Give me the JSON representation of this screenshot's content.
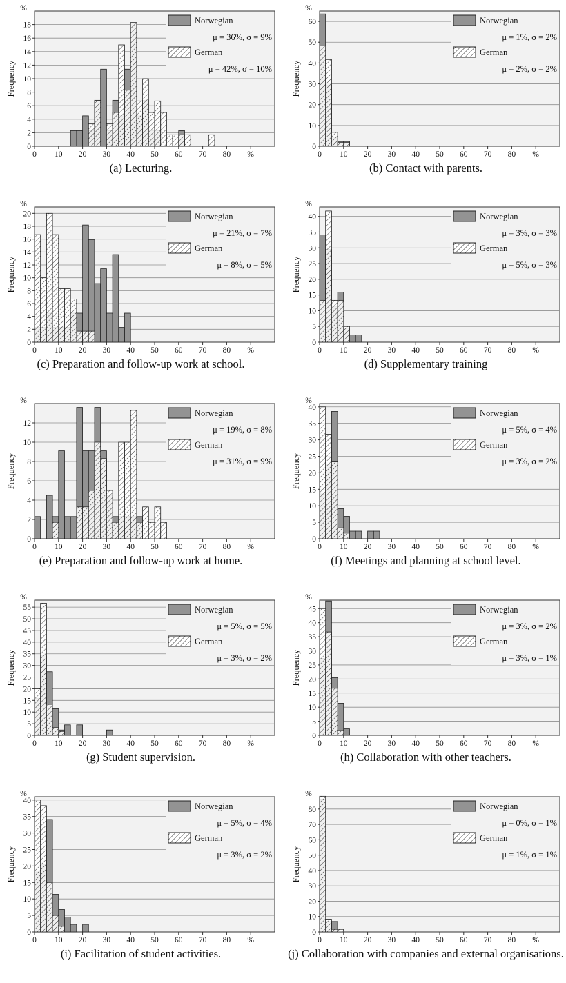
{
  "legend": {
    "series": [
      "Norwegian",
      "German"
    ]
  },
  "colors": {
    "norwegian_fill": "#939393",
    "german_fill": "#ffffff",
    "hatch": "#222222",
    "plot_bg": "#f2f2f2",
    "grid": "#8f8f8f"
  },
  "axis": {
    "ylabel": "Frequency",
    "unit": "%",
    "x_ticks": [
      "0",
      "10",
      "20",
      "30",
      "40",
      "50",
      "60",
      "70",
      "80",
      "%"
    ]
  },
  "chart_data": [
    {
      "type": "bar",
      "caption": "(a) Lecturing.",
      "bin_width": 2.5,
      "xlim": [
        0,
        100
      ],
      "ylim": [
        0,
        20
      ],
      "yticks": [
        0,
        2,
        4,
        6,
        8,
        10,
        12,
        14,
        16,
        18
      ],
      "series": [
        {
          "name": "Norwegian",
          "stats": "μ = 36%, σ = 9%",
          "bins": [
            [
              15,
              2.3
            ],
            [
              17.5,
              2.3
            ],
            [
              20,
              4.5
            ],
            [
              22.5,
              2.3
            ],
            [
              25,
              6.8
            ],
            [
              27.5,
              11.4
            ],
            [
              30,
              2.3
            ],
            [
              32.5,
              6.8
            ],
            [
              35,
              4.5
            ],
            [
              37.5,
              11.4
            ],
            [
              40,
              18.2
            ],
            [
              42.5,
              4.5
            ],
            [
              45,
              6.8
            ],
            [
              47.5,
              2.3
            ],
            [
              50,
              2.3
            ],
            [
              60,
              2.3
            ]
          ]
        },
        {
          "name": "German",
          "stats": "μ = 42%, σ = 10%",
          "bins": [
            [
              22.5,
              3.3
            ],
            [
              25,
              6.7
            ],
            [
              30,
              3.3
            ],
            [
              32.5,
              5
            ],
            [
              35,
              15
            ],
            [
              37.5,
              8.3
            ],
            [
              40,
              18.3
            ],
            [
              42.5,
              6.7
            ],
            [
              45,
              10
            ],
            [
              47.5,
              5
            ],
            [
              50,
              6.7
            ],
            [
              52.5,
              5
            ],
            [
              55,
              1.7
            ],
            [
              57.5,
              1.7
            ],
            [
              60,
              1.7
            ],
            [
              62.5,
              1.7
            ],
            [
              72.5,
              1.7
            ]
          ]
        }
      ]
    },
    {
      "type": "bar",
      "caption": "(b) Contact with parents.",
      "bin_width": 2.5,
      "xlim": [
        0,
        100
      ],
      "ylim": [
        0,
        65
      ],
      "yticks": [
        0,
        10,
        20,
        30,
        40,
        50,
        60
      ],
      "series": [
        {
          "name": "Norwegian",
          "stats": "μ = 1%, σ = 2%",
          "bins": [
            [
              0,
              63.6
            ],
            [
              2.5,
              29.5
            ],
            [
              5,
              4.5
            ],
            [
              7.5,
              2.3
            ],
            [
              10,
              2.3
            ]
          ]
        },
        {
          "name": "German",
          "stats": "μ = 2%, σ = 2%",
          "bins": [
            [
              0,
              48.3
            ],
            [
              2.5,
              41.7
            ],
            [
              5,
              6.7
            ],
            [
              7.5,
              1.7
            ],
            [
              10,
              1.7
            ]
          ]
        }
      ]
    },
    {
      "type": "bar",
      "caption": "(c) Preparation and follow-up work at school.",
      "bin_width": 2.5,
      "xlim": [
        0,
        100
      ],
      "ylim": [
        0,
        21
      ],
      "yticks": [
        0,
        2,
        4,
        6,
        8,
        10,
        12,
        14,
        16,
        18,
        20
      ],
      "series": [
        {
          "name": "Norwegian",
          "stats": "μ = 21%, σ = 7%",
          "bins": [
            [
              0,
              2.3
            ],
            [
              2.5,
              2.3
            ],
            [
              5,
              4.5
            ],
            [
              7.5,
              2.3
            ],
            [
              10,
              2.3
            ],
            [
              12.5,
              2.3
            ],
            [
              15,
              4.5
            ],
            [
              17.5,
              4.5
            ],
            [
              20,
              18.2
            ],
            [
              22.5,
              15.9
            ],
            [
              25,
              9.1
            ],
            [
              27.5,
              11.4
            ],
            [
              30,
              4.5
            ],
            [
              32.5,
              13.6
            ],
            [
              35,
              2.3
            ],
            [
              37.5,
              4.5
            ]
          ]
        },
        {
          "name": "German",
          "stats": "μ = 8%, σ = 5%",
          "bins": [
            [
              0,
              16.7
            ],
            [
              2.5,
              10
            ],
            [
              5,
              20
            ],
            [
              7.5,
              16.7
            ],
            [
              10,
              8.3
            ],
            [
              12.5,
              8.3
            ],
            [
              15,
              6.7
            ],
            [
              17.5,
              1.7
            ],
            [
              20,
              1.7
            ],
            [
              22.5,
              1.7
            ]
          ]
        }
      ]
    },
    {
      "type": "bar",
      "caption": "(d) Supplementary training",
      "bin_width": 2.5,
      "xlim": [
        0,
        100
      ],
      "ylim": [
        0,
        43
      ],
      "yticks": [
        0,
        5,
        10,
        15,
        20,
        25,
        30,
        35,
        40
      ],
      "series": [
        {
          "name": "Norwegian",
          "stats": "μ = 3%, σ = 3%",
          "bins": [
            [
              0,
              34.1
            ],
            [
              2.5,
              29.5
            ],
            [
              5,
              11.4
            ],
            [
              7.5,
              15.9
            ],
            [
              10,
              4.5
            ],
            [
              12.5,
              2.3
            ],
            [
              15,
              2.3
            ]
          ]
        },
        {
          "name": "German",
          "stats": "μ = 5%, σ = 3%",
          "bins": [
            [
              0,
              13.3
            ],
            [
              2.5,
              41.7
            ],
            [
              5,
              13.3
            ],
            [
              7.5,
              13.3
            ],
            [
              10,
              5
            ]
          ]
        }
      ]
    },
    {
      "type": "bar",
      "caption": "(e) Preparation and follow-up work at home.",
      "bin_width": 2.5,
      "xlim": [
        0,
        100
      ],
      "ylim": [
        0,
        14
      ],
      "yticks": [
        0,
        2,
        4,
        6,
        8,
        10,
        12
      ],
      "series": [
        {
          "name": "Norwegian",
          "stats": "μ = 19%, σ = 8%",
          "bins": [
            [
              0,
              2.3
            ],
            [
              5,
              4.5
            ],
            [
              7.5,
              2.3
            ],
            [
              10,
              9.1
            ],
            [
              12.5,
              2.3
            ],
            [
              15,
              2.3
            ],
            [
              17.5,
              13.6
            ],
            [
              20,
              9.1
            ],
            [
              22.5,
              9.1
            ],
            [
              25,
              13.6
            ],
            [
              27.5,
              9.1
            ],
            [
              30,
              4.5
            ],
            [
              32.5,
              2.3
            ],
            [
              35,
              2.3
            ],
            [
              37.5,
              2.3
            ],
            [
              40,
              2.3
            ],
            [
              42.5,
              2.3
            ]
          ]
        },
        {
          "name": "German",
          "stats": "μ = 31%, σ = 9%",
          "bins": [
            [
              7.5,
              1.7
            ],
            [
              17.5,
              3.3
            ],
            [
              20,
              3.3
            ],
            [
              22.5,
              5
            ],
            [
              25,
              10
            ],
            [
              27.5,
              8.3
            ],
            [
              30,
              5
            ],
            [
              32.5,
              1.7
            ],
            [
              35,
              10
            ],
            [
              37.5,
              10
            ],
            [
              40,
              13.3
            ],
            [
              42.5,
              1.7
            ],
            [
              45,
              3.3
            ],
            [
              47.5,
              1.7
            ],
            [
              50,
              3.3
            ],
            [
              52.5,
              1.7
            ]
          ]
        }
      ]
    },
    {
      "type": "bar",
      "caption": "(f) Meetings and planning at school level.",
      "bin_width": 2.5,
      "xlim": [
        0,
        100
      ],
      "ylim": [
        0,
        41
      ],
      "yticks": [
        0,
        5,
        10,
        15,
        20,
        25,
        30,
        35,
        40
      ],
      "series": [
        {
          "name": "Norwegian",
          "stats": "μ = 5%, σ = 4%",
          "bins": [
            [
              0,
              13.6
            ],
            [
              2.5,
              22.7
            ],
            [
              5,
              38.6
            ],
            [
              7.5,
              9.1
            ],
            [
              10,
              6.8
            ],
            [
              12.5,
              2.3
            ],
            [
              15,
              2.3
            ],
            [
              20,
              2.3
            ],
            [
              22.5,
              2.3
            ]
          ]
        },
        {
          "name": "German",
          "stats": "μ = 3%, σ = 2%",
          "bins": [
            [
              0,
              40
            ],
            [
              2.5,
              31.7
            ],
            [
              5,
              23.3
            ],
            [
              7.5,
              3.3
            ],
            [
              10,
              1.7
            ]
          ]
        }
      ]
    },
    {
      "type": "bar",
      "caption": "(g) Student supervision.",
      "bin_width": 2.5,
      "xlim": [
        0,
        100
      ],
      "ylim": [
        0,
        58
      ],
      "yticks": [
        0,
        5,
        10,
        15,
        20,
        25,
        30,
        35,
        40,
        45,
        50,
        55
      ],
      "series": [
        {
          "name": "Norwegian",
          "stats": "μ = 5%, σ = 5%",
          "bins": [
            [
              0,
              15.9
            ],
            [
              2.5,
              34.1
            ],
            [
              5,
              27.3
            ],
            [
              7.5,
              11.4
            ],
            [
              10,
              2.3
            ],
            [
              12.5,
              4.5
            ],
            [
              17.5,
              4.5
            ],
            [
              30,
              2.3
            ]
          ]
        },
        {
          "name": "German",
          "stats": "μ = 3%, σ = 2%",
          "bins": [
            [
              0,
              20
            ],
            [
              2.5,
              56.7
            ],
            [
              5,
              13.3
            ],
            [
              7.5,
              3.3
            ],
            [
              10,
              1.7
            ]
          ]
        }
      ]
    },
    {
      "type": "bar",
      "caption": "(h) Collaboration with other teachers.",
      "bin_width": 2.5,
      "xlim": [
        0,
        100
      ],
      "ylim": [
        0,
        48
      ],
      "yticks": [
        0,
        5,
        10,
        15,
        20,
        25,
        30,
        35,
        40,
        45
      ],
      "series": [
        {
          "name": "Norwegian",
          "stats": "μ = 3%, σ = 2%",
          "bins": [
            [
              0,
              27.3
            ],
            [
              2.5,
              47.7
            ],
            [
              5,
              20.5
            ],
            [
              7.5,
              11.4
            ],
            [
              10,
              2.3
            ]
          ]
        },
        {
          "name": "German",
          "stats": "μ = 3%, σ = 1%",
          "bins": [
            [
              0,
              45
            ],
            [
              2.5,
              36.7
            ],
            [
              5,
              16.7
            ],
            [
              7.5,
              1.7
            ]
          ]
        }
      ]
    },
    {
      "type": "bar",
      "caption": "(i) Facilitation of student activities.",
      "bin_width": 2.5,
      "xlim": [
        0,
        100
      ],
      "ylim": [
        0,
        41
      ],
      "yticks": [
        0,
        5,
        10,
        15,
        20,
        25,
        30,
        35,
        40
      ],
      "series": [
        {
          "name": "Norwegian",
          "stats": "μ = 5%, σ = 4%",
          "bins": [
            [
              0,
              18.2
            ],
            [
              2.5,
              20.5
            ],
            [
              5,
              34.1
            ],
            [
              7.5,
              11.4
            ],
            [
              10,
              6.8
            ],
            [
              12.5,
              4.5
            ],
            [
              15,
              2.3
            ],
            [
              20,
              2.3
            ]
          ]
        },
        {
          "name": "German",
          "stats": "μ = 3%, σ = 2%",
          "bins": [
            [
              0,
              40
            ],
            [
              2.5,
              38.3
            ],
            [
              5,
              15
            ],
            [
              7.5,
              5
            ],
            [
              10,
              1.7
            ]
          ]
        }
      ]
    },
    {
      "type": "bar",
      "caption": "(j) Collaboration with companies and external organisations.",
      "bin_width": 2.5,
      "xlim": [
        0,
        100
      ],
      "ylim": [
        0,
        88
      ],
      "yticks": [
        0,
        10,
        20,
        30,
        40,
        50,
        60,
        70,
        80
      ],
      "series": [
        {
          "name": "Norwegian",
          "stats": "μ = 0%, σ = 1%",
          "bins": [
            [
              0,
              86.4
            ],
            [
              2.5,
              6.8
            ],
            [
              5,
              6.8
            ]
          ]
        },
        {
          "name": "German",
          "stats": "μ = 1%, σ = 1%",
          "bins": [
            [
              0,
              88.3
            ],
            [
              2.5,
              8.3
            ],
            [
              5,
              1.7
            ],
            [
              7.5,
              1.7
            ]
          ]
        }
      ]
    }
  ]
}
